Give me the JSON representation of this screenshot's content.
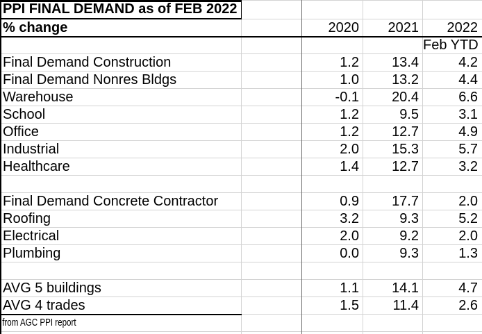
{
  "sheet": {
    "title": "PPI FINAL DEMAND as of FEB 2022",
    "measure_label": "% change",
    "col_headers": [
      "2020",
      "2021",
      "2022"
    ],
    "sub_header": "Feb YTD",
    "source_note": "from AGC PPI report"
  },
  "rows": [
    {
      "label": "Final Demand Construction",
      "values": [
        "1.2",
        "13.4",
        "4.2"
      ]
    },
    {
      "label": "Final Demand Nonres Bldgs",
      "values": [
        "1.0",
        "13.2",
        "4.4"
      ]
    },
    {
      "label": "Warehouse",
      "values": [
        "-0.1",
        "20.4",
        "6.6"
      ]
    },
    {
      "label": "School",
      "values": [
        "1.2",
        "9.5",
        "3.1"
      ]
    },
    {
      "label": "Office",
      "values": [
        "1.2",
        "12.7",
        "4.9"
      ]
    },
    {
      "label": "Industrial",
      "values": [
        "2.0",
        "15.3",
        "5.7"
      ]
    },
    {
      "label": "Healthcare",
      "values": [
        "1.4",
        "12.7",
        "3.2"
      ]
    },
    {
      "label": "",
      "values": [
        "",
        "",
        ""
      ]
    },
    {
      "label": "Final Demand Concrete Contractor",
      "values": [
        "0.9",
        "17.7",
        "2.0"
      ]
    },
    {
      "label": "Roofing",
      "values": [
        "3.2",
        "9.3",
        "5.2"
      ]
    },
    {
      "label": "Electrical",
      "values": [
        "2.0",
        "9.2",
        "2.0"
      ]
    },
    {
      "label": "Plumbing",
      "values": [
        "0.0",
        "9.3",
        "1.3"
      ]
    },
    {
      "label": "",
      "values": [
        "",
        "",
        ""
      ]
    },
    {
      "label": "AVG 5 buildings",
      "values": [
        "1.1",
        "14.1",
        "4.7"
      ]
    },
    {
      "label": "AVG 4 trades",
      "values": [
        "1.5",
        "11.4",
        "2.6"
      ]
    }
  ],
  "colors": {
    "background": "#ffffff",
    "text": "#000000",
    "gridline": "#d3d3d3",
    "column_divider": "#6f6f6f",
    "border": "#000000"
  }
}
